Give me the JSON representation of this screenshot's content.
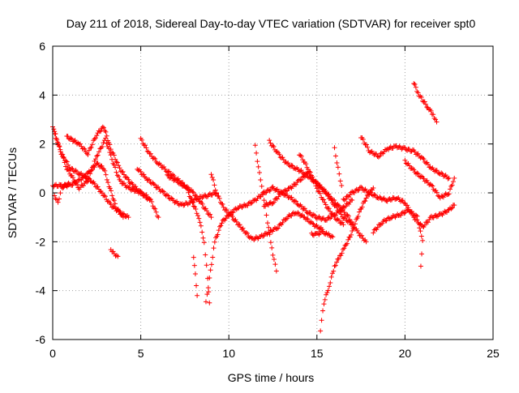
{
  "chart_data": {
    "type": "scatter",
    "title": "Day 211 of 2018, Sidereal Day-to-day VTEC variation (SDTVAR) for receiver spt0",
    "xlabel": "GPS time / hours",
    "ylabel": "SDTVAR / TECUs",
    "xlim": [
      0,
      25
    ],
    "ylim": [
      -6,
      6
    ],
    "x_ticks": [
      "0",
      "5",
      "10",
      "15",
      "20",
      "25"
    ],
    "y_ticks": [
      "-6",
      "-4",
      "-2",
      "0",
      "2",
      "4",
      "6"
    ],
    "grid": true,
    "marker": "+",
    "marker_color": "#ff0000",
    "series_note": "multiple satellite arcs (approximate digitization)",
    "tracks": [
      [
        [
          0.0,
          2.7
        ],
        [
          0.3,
          2.0
        ],
        [
          0.8,
          1.0
        ],
        [
          1.5,
          0.2
        ],
        [
          2.0,
          0.5
        ],
        [
          2.5,
          1.5
        ],
        [
          3.0,
          2.2
        ],
        [
          3.3,
          1.5
        ],
        [
          3.8,
          0.5
        ],
        [
          4.3,
          0.2
        ],
        [
          5.0,
          0.0
        ],
        [
          5.5,
          -0.2
        ],
        [
          6.0,
          -1.0
        ]
      ],
      [
        [
          0.0,
          0.3
        ],
        [
          0.5,
          0.3
        ],
        [
          1.0,
          0.3
        ],
        [
          1.5,
          0.5
        ],
        [
          2.0,
          0.8
        ],
        [
          2.5,
          1.2
        ],
        [
          2.9,
          1.0
        ],
        [
          3.2,
          0.3
        ],
        [
          3.6,
          -0.6
        ],
        [
          4.0,
          -1.0
        ]
      ],
      [
        [
          0.1,
          2.5
        ],
        [
          0.5,
          1.6
        ],
        [
          1.0,
          1.0
        ],
        [
          1.5,
          0.8
        ],
        [
          2.2,
          0.5
        ],
        [
          2.8,
          0.0
        ],
        [
          3.3,
          -0.5
        ],
        [
          3.8,
          -0.8
        ],
        [
          4.3,
          -1.0
        ]
      ],
      [
        [
          0.1,
          -0.1
        ],
        [
          0.3,
          -0.4
        ],
        [
          0.5,
          0.2
        ],
        [
          0.9,
          0.4
        ]
      ],
      [
        [
          0.8,
          2.3
        ],
        [
          1.5,
          2.0
        ],
        [
          2.0,
          1.6
        ],
        [
          2.5,
          2.4
        ],
        [
          2.9,
          2.7
        ],
        [
          3.3,
          1.8
        ],
        [
          3.8,
          1.0
        ],
        [
          4.3,
          0.5
        ],
        [
          5.0,
          0.0
        ],
        [
          5.5,
          -0.3
        ]
      ],
      [
        [
          3.3,
          -2.3
        ],
        [
          3.5,
          -2.5
        ],
        [
          3.7,
          -2.6
        ]
      ],
      [
        [
          5.0,
          2.2
        ],
        [
          5.5,
          1.6
        ],
        [
          6.0,
          1.2
        ],
        [
          6.5,
          0.9
        ],
        [
          7.0,
          0.6
        ],
        [
          7.5,
          0.3
        ],
        [
          8.0,
          0.0
        ],
        [
          8.5,
          -0.5
        ],
        [
          9.0,
          -1.0
        ]
      ],
      [
        [
          4.8,
          1.0
        ],
        [
          5.3,
          0.6
        ],
        [
          5.8,
          0.3
        ],
        [
          6.3,
          0.0
        ],
        [
          6.8,
          -0.3
        ],
        [
          7.3,
          -0.5
        ],
        [
          7.8,
          -0.4
        ],
        [
          8.3,
          -0.2
        ],
        [
          8.8,
          -0.1
        ],
        [
          9.3,
          0.0
        ]
      ],
      [
        [
          6.5,
          0.7
        ],
        [
          7.0,
          0.5
        ],
        [
          7.6,
          0.2
        ],
        [
          8.0,
          -0.5
        ],
        [
          8.3,
          -1.0
        ],
        [
          8.6,
          -2.0
        ],
        [
          8.8,
          -3.5
        ],
        [
          8.9,
          -4.5
        ]
      ],
      [
        [
          8.0,
          -2.6
        ],
        [
          8.1,
          -3.3
        ],
        [
          8.2,
          -4.2
        ]
      ],
      [
        [
          8.7,
          -4.5
        ],
        [
          8.9,
          -3.5
        ],
        [
          9.2,
          -2.0
        ],
        [
          9.6,
          -1.2
        ],
        [
          10.0,
          -0.9
        ],
        [
          10.5,
          -0.6
        ],
        [
          11.0,
          -0.5
        ],
        [
          11.5,
          -0.3
        ],
        [
          12.0,
          0.0
        ],
        [
          12.5,
          0.2
        ],
        [
          13.0,
          0.0
        ],
        [
          13.5,
          -0.2
        ],
        [
          14.0,
          -0.5
        ],
        [
          14.5,
          -0.8
        ],
        [
          15.0,
          -1.0
        ],
        [
          15.5,
          -1.1
        ],
        [
          16.0,
          -0.9
        ],
        [
          16.5,
          -0.6
        ],
        [
          17.0,
          -0.3
        ]
      ],
      [
        [
          9.0,
          0.8
        ],
        [
          9.3,
          0.0
        ],
        [
          9.7,
          -0.6
        ],
        [
          10.2,
          -1.0
        ],
        [
          10.8,
          -1.5
        ],
        [
          11.3,
          -1.9
        ],
        [
          11.8,
          -1.8
        ],
        [
          12.3,
          -1.6
        ],
        [
          12.8,
          -1.4
        ],
        [
          13.3,
          -1.0
        ],
        [
          13.8,
          -0.8
        ],
        [
          14.3,
          -1.0
        ],
        [
          14.8,
          -1.3
        ],
        [
          15.3,
          -1.5
        ]
      ],
      [
        [
          11.5,
          1.9
        ],
        [
          11.8,
          0.5
        ],
        [
          12.0,
          -0.3
        ],
        [
          12.2,
          -1.2
        ],
        [
          12.5,
          -2.5
        ],
        [
          12.7,
          -3.2
        ]
      ],
      [
        [
          12.0,
          -0.5
        ],
        [
          12.5,
          -0.4
        ],
        [
          13.0,
          0.0
        ],
        [
          13.5,
          0.2
        ],
        [
          14.0,
          0.5
        ],
        [
          14.5,
          0.8
        ],
        [
          15.0,
          0.4
        ],
        [
          15.5,
          0.0
        ],
        [
          16.0,
          -0.5
        ],
        [
          16.5,
          -1.0
        ],
        [
          17.0,
          -1.3
        ]
      ],
      [
        [
          12.3,
          2.1
        ],
        [
          12.8,
          1.6
        ],
        [
          13.3,
          1.2
        ],
        [
          13.8,
          1.0
        ],
        [
          14.3,
          0.8
        ],
        [
          14.8,
          0.5
        ],
        [
          15.3,
          0.2
        ],
        [
          15.8,
          -0.2
        ],
        [
          16.3,
          -0.6
        ],
        [
          16.8,
          -1.0
        ],
        [
          17.3,
          -1.6
        ],
        [
          17.8,
          -2.0
        ]
      ],
      [
        [
          14.0,
          1.6
        ],
        [
          14.5,
          1.0
        ],
        [
          15.0,
          0.2
        ],
        [
          15.5,
          -0.5
        ],
        [
          16.0,
          -1.0
        ],
        [
          16.5,
          -1.3
        ]
      ],
      [
        [
          14.7,
          -1.7
        ],
        [
          15.0,
          -1.7
        ],
        [
          15.3,
          -1.6
        ],
        [
          15.6,
          -1.7
        ],
        [
          15.9,
          -1.8
        ]
      ],
      [
        [
          15.2,
          -5.6
        ],
        [
          15.4,
          -4.5
        ],
        [
          15.7,
          -3.8
        ],
        [
          16.0,
          -3.0
        ],
        [
          16.3,
          -2.6
        ],
        [
          16.6,
          -2.2
        ],
        [
          17.0,
          -1.6
        ],
        [
          17.4,
          -0.8
        ],
        [
          17.8,
          -0.2
        ],
        [
          18.2,
          0.2
        ]
      ],
      [
        [
          16.0,
          1.8
        ],
        [
          16.2,
          1.0
        ],
        [
          16.4,
          0.3
        ]
      ],
      [
        [
          17.5,
          2.3
        ],
        [
          18.0,
          1.7
        ],
        [
          18.5,
          1.5
        ],
        [
          19.0,
          1.8
        ],
        [
          19.5,
          1.9
        ],
        [
          20.0,
          1.8
        ],
        [
          20.5,
          1.7
        ],
        [
          21.0,
          1.4
        ],
        [
          21.5,
          1.0
        ],
        [
          22.0,
          0.8
        ],
        [
          22.5,
          0.6
        ]
      ],
      [
        [
          16.5,
          -0.3
        ],
        [
          17.0,
          0.0
        ],
        [
          17.5,
          0.2
        ],
        [
          18.0,
          0.0
        ],
        [
          18.5,
          -0.2
        ],
        [
          19.0,
          -0.3
        ],
        [
          19.5,
          -0.2
        ],
        [
          20.0,
          -0.4
        ],
        [
          20.5,
          -1.0
        ],
        [
          21.0,
          -1.4
        ],
        [
          21.5,
          -1.0
        ],
        [
          22.0,
          -0.9
        ],
        [
          22.5,
          -0.7
        ],
        [
          22.8,
          -0.5
        ]
      ],
      [
        [
          18.2,
          -1.6
        ],
        [
          18.7,
          -1.2
        ],
        [
          19.2,
          -1.0
        ],
        [
          19.7,
          -0.9
        ],
        [
          20.2,
          -0.7
        ],
        [
          20.7,
          -1.0
        ],
        [
          21.0,
          -2.0
        ],
        [
          20.9,
          -3.0
        ]
      ],
      [
        [
          20.0,
          1.3
        ],
        [
          20.5,
          0.9
        ],
        [
          21.0,
          0.6
        ],
        [
          21.5,
          0.3
        ],
        [
          22.0,
          -0.2
        ],
        [
          22.5,
          0.0
        ],
        [
          22.8,
          0.6
        ]
      ],
      [
        [
          20.5,
          4.5
        ],
        [
          20.8,
          4.0
        ],
        [
          21.0,
          3.8
        ],
        [
          21.3,
          3.5
        ],
        [
          21.6,
          3.2
        ],
        [
          21.8,
          2.9
        ]
      ]
    ]
  }
}
